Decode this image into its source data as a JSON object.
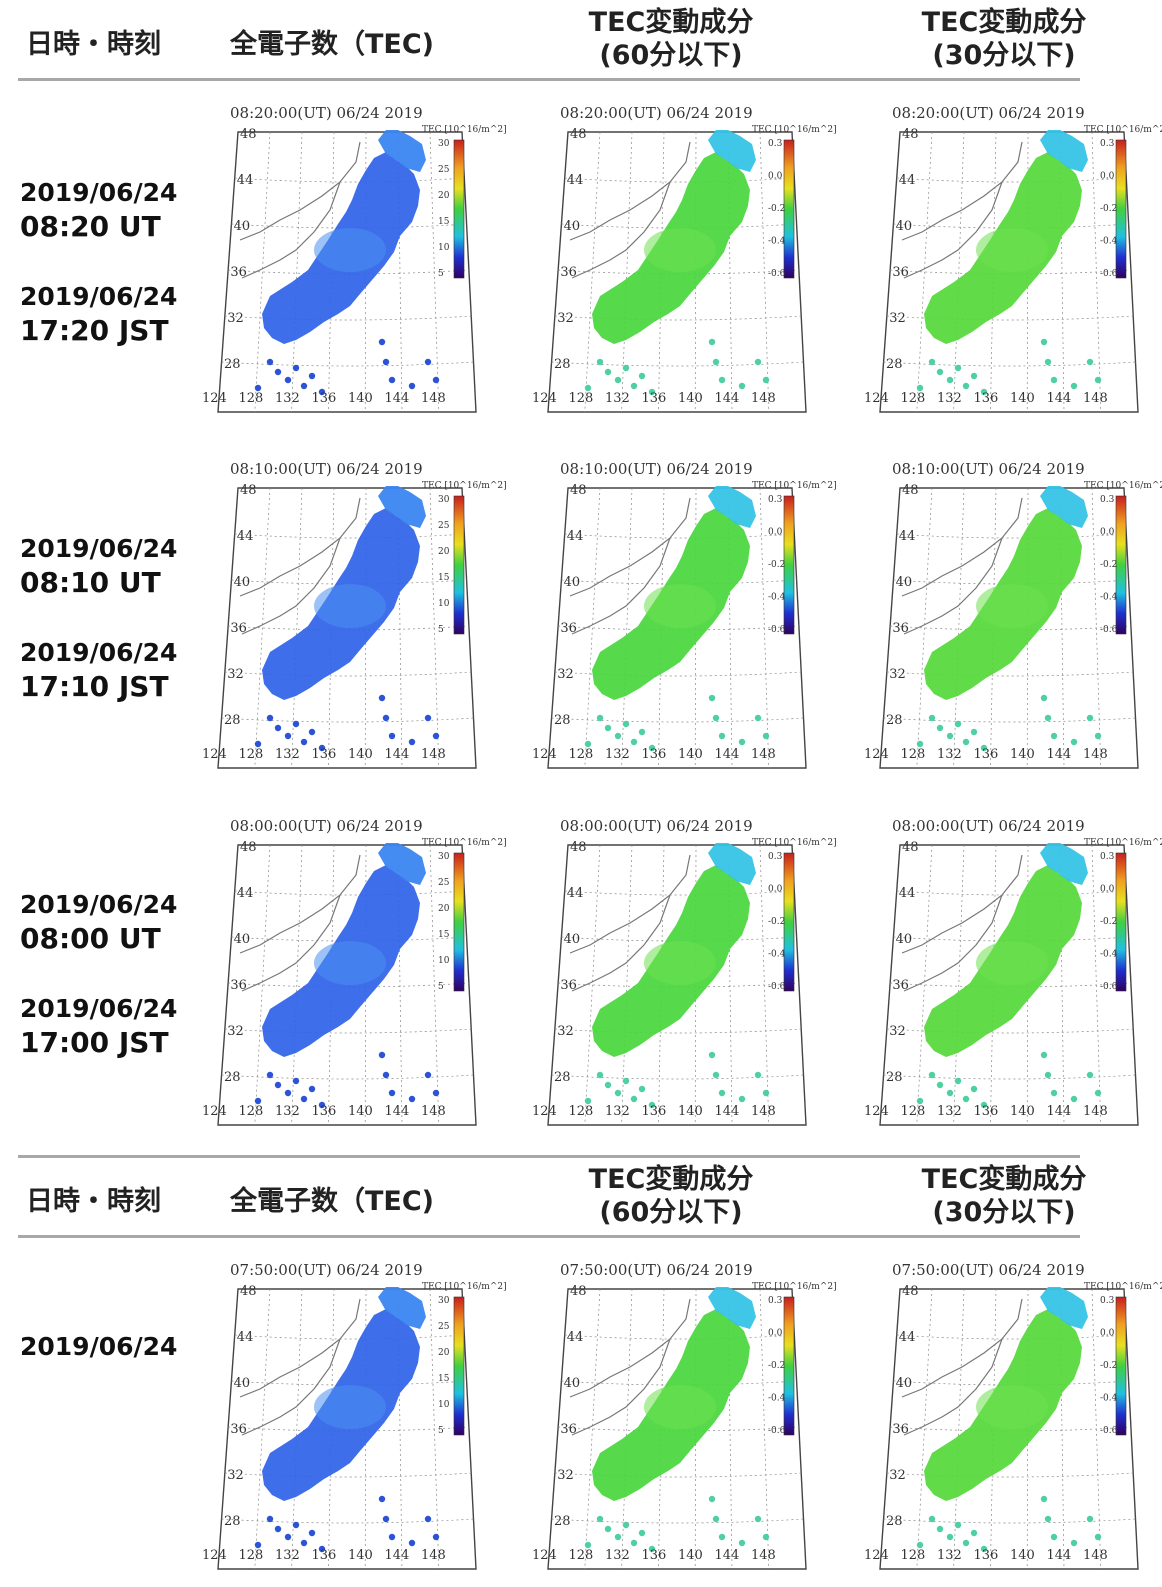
{
  "header_top": {
    "datetime_label": "日時・時刻",
    "tec_label": "全電子数（TEC)",
    "var60_line1": "TEC変動成分",
    "var60_line2": "(60分以下)",
    "var30_line1": "TEC変動成分",
    "var30_line2": "(30分以下)"
  },
  "header_bottom": {
    "datetime_label": "日時・時刻",
    "tec_label": "全電子数（TEC)",
    "var60_line1": "TEC変動成分",
    "var60_line2": "(60分以下)",
    "var30_line1": "TEC変動成分",
    "var30_line2": "(30分以下)"
  },
  "rows": [
    {
      "ut_date": "2019/06/24",
      "ut_time": "08:20 UT",
      "jst_date": "2019/06/24",
      "jst_time": "17:20 JST",
      "map_caption": "08:20:00(UT)  06/24 2019"
    },
    {
      "ut_date": "2019/06/24",
      "ut_time": "08:10 UT",
      "jst_date": "2019/06/24",
      "jst_time": "17:10 JST",
      "map_caption": "08:10:00(UT)  06/24 2019"
    },
    {
      "ut_date": "2019/06/24",
      "ut_time": "08:00 UT",
      "jst_date": "2019/06/24",
      "jst_time": "17:00 JST",
      "map_caption": "08:00:00(UT)  06/24 2019"
    },
    {
      "ut_date": "2019/06/24",
      "map_caption": "07:50:00(UT)  06/24 2019"
    }
  ],
  "map_common": {
    "lat_ticks": [
      "48",
      "44",
      "40",
      "36",
      "32",
      "28"
    ],
    "lon_ticks": [
      "124",
      "128",
      "132",
      "136",
      "140",
      "144",
      "148"
    ],
    "legend_unit": "TEC [10^16/m^2]",
    "tec_scale": [
      "30",
      "25",
      "20",
      "15",
      "10",
      "5"
    ],
    "var_scale": [
      "0.3",
      "0.0",
      "-0.2",
      "-0.4",
      "-0.6"
    ]
  },
  "colors": {
    "tec_japan": "#2f62e8",
    "tec_north": "#3a86f0",
    "var60_japan": "#48d63c",
    "var60_north": "#36c3e6",
    "var30_japan": "#55d83a",
    "rule": "#a8a8a8"
  }
}
